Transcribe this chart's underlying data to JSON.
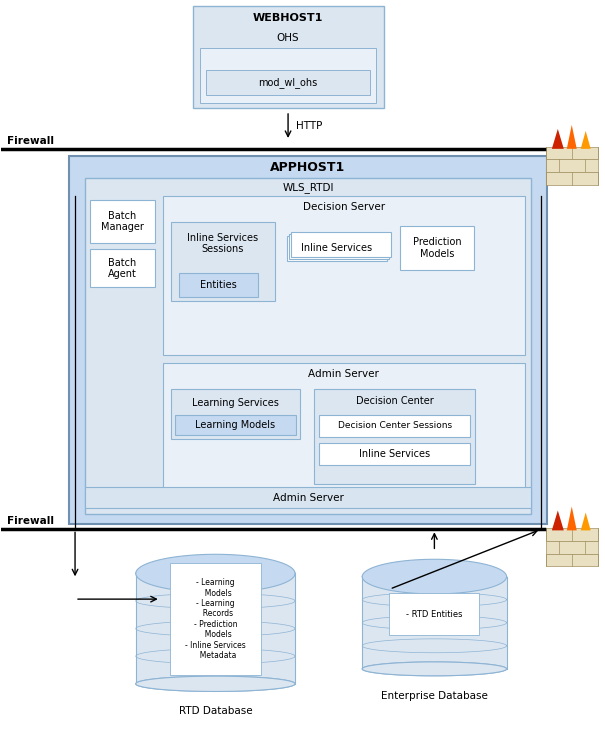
{
  "fig_width": 6.05,
  "fig_height": 7.37,
  "bg_color": "#ffffff",
  "colors": {
    "light_blue_outer": "#c5d9f1",
    "light_blue_mid": "#dce6f1",
    "very_light_blue": "#eaf0f8",
    "white": "#ffffff",
    "edge_blue": "#8eb4d4",
    "edge_dark": "#7090b0"
  },
  "webhost_title": "WEBHOST1",
  "ohs_text": "OHS",
  "mod_text": "mod_wl_ohs",
  "http_text": "HTTP",
  "firewall_text": "Firewall",
  "apphost_title": "APPHOST1",
  "wls_text": "WLS_RTDI",
  "decision_server_text": "Decision Server",
  "batch_manager_text": "Batch\nManager",
  "batch_agent_text": "Batch\nAgent",
  "inline_sessions_text": "Inline Services\nSessions",
  "entities_text": "Entities",
  "inline_services_text": "Inline Services",
  "prediction_models_text": "Prediction\nModels",
  "admin_server_text": "Admin Server",
  "learning_services_text": "Learning Services",
  "learning_models_text": "Learning Models",
  "decision_center_text": "Decision Center",
  "dc_sessions_text": "Decision Center Sessions",
  "dc_inline_text": "Inline Services",
  "rtd_db_label": "RTD Database",
  "ent_db_label": "Enterprise Database",
  "rtd_db_text": "- Learning\n  Models\n- Learning\n  Records\n- Prediction\n  Models\n- Inline Services\n  Metadata",
  "ent_db_text": "- RTD Entities"
}
